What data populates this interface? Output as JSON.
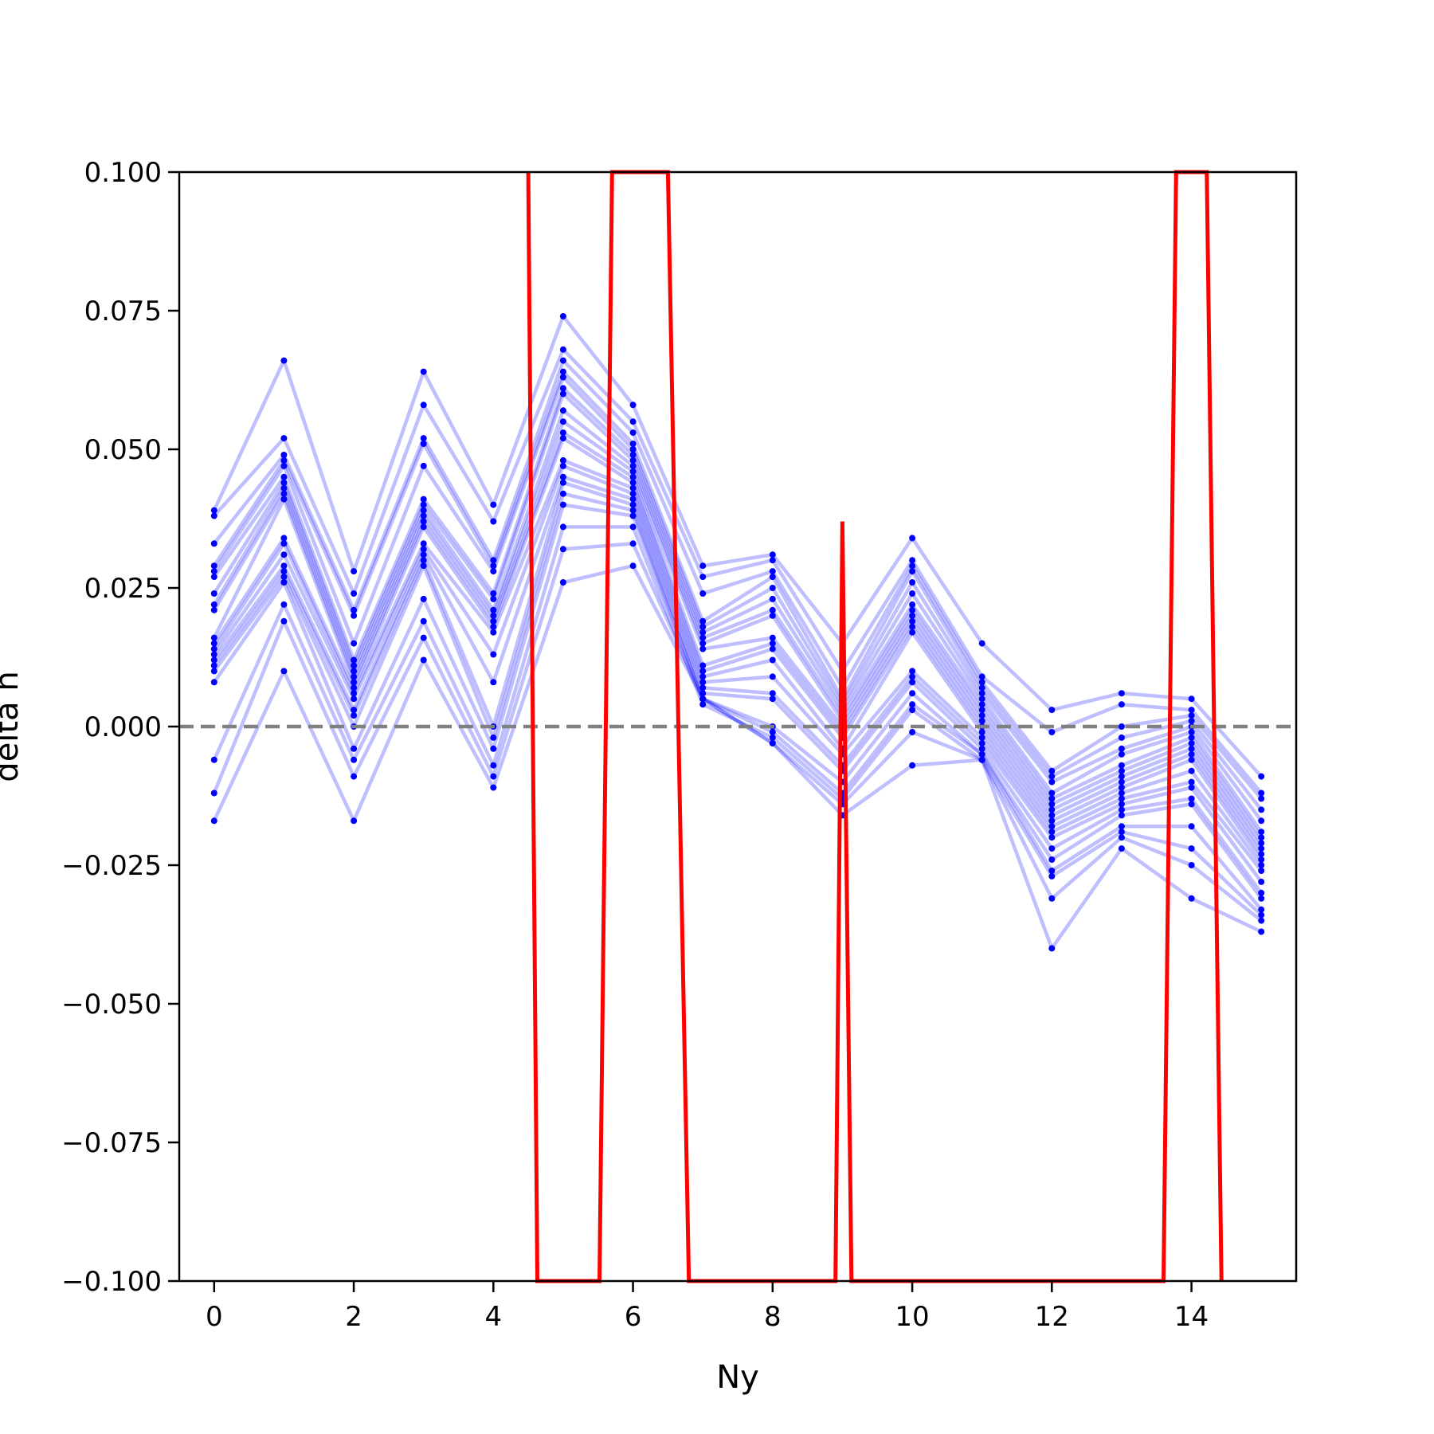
{
  "chart_data": {
    "type": "line",
    "title": "",
    "xlabel": "Ny",
    "ylabel": "delta n",
    "xlim": [
      -0.5,
      15.5
    ],
    "ylim": [
      -0.1,
      0.1
    ],
    "xticks": [
      0,
      2,
      4,
      6,
      8,
      10,
      12,
      14
    ],
    "xtick_labels": [
      "0",
      "2",
      "4",
      "6",
      "8",
      "10",
      "12",
      "14"
    ],
    "yticks": [
      0.1,
      0.075,
      0.05,
      0.025,
      0.0,
      -0.025,
      -0.05,
      -0.075,
      -0.1
    ],
    "ytick_labels": [
      "0.100",
      "0.075",
      "0.050",
      "0.025",
      "0.000",
      "−0.025",
      "−0.050",
      "−0.075",
      "−0.100"
    ],
    "grid": false,
    "legend": "none",
    "reference_line": {
      "y": 0.0,
      "style": "dashed",
      "color": "#808080"
    },
    "x": [
      0,
      1,
      2,
      3,
      4,
      5,
      6,
      7,
      8,
      9,
      10,
      11,
      12,
      13,
      14,
      15
    ],
    "series": [
      {
        "color": "#0000ff",
        "values": [
          0.039,
          0.066,
          0.028,
          0.064,
          0.04,
          0.074,
          0.058,
          0.029,
          0.031,
          0.015,
          0.034,
          0.015,
          0.003,
          0.006,
          0.005,
          -0.009
        ]
      },
      {
        "color": "#0000ff",
        "values": [
          0.038,
          0.052,
          0.024,
          0.058,
          0.037,
          0.068,
          0.055,
          0.027,
          0.03,
          0.01,
          0.03,
          0.009,
          -0.001,
          0.004,
          0.003,
          -0.012
        ]
      },
      {
        "color": "#0000ff",
        "values": [
          0.033,
          0.049,
          0.021,
          0.052,
          0.03,
          0.066,
          0.053,
          0.024,
          0.028,
          0.007,
          0.029,
          0.008,
          -0.008,
          0.0,
          0.002,
          -0.013
        ]
      },
      {
        "color": "#0000ff",
        "values": [
          0.029,
          0.048,
          0.02,
          0.051,
          0.029,
          0.064,
          0.051,
          0.019,
          0.027,
          0.005,
          0.028,
          0.007,
          -0.009,
          -0.002,
          0.001,
          -0.015
        ]
      },
      {
        "color": "#0000ff",
        "values": [
          0.028,
          0.047,
          0.015,
          0.047,
          0.028,
          0.063,
          0.05,
          0.018,
          0.025,
          0.004,
          0.026,
          0.006,
          -0.01,
          -0.004,
          0.0,
          -0.017
        ]
      },
      {
        "color": "#0000ff",
        "values": [
          0.027,
          0.045,
          0.012,
          0.041,
          0.024,
          0.061,
          0.049,
          0.017,
          0.023,
          0.003,
          0.024,
          0.005,
          -0.012,
          -0.005,
          -0.001,
          -0.019
        ]
      },
      {
        "color": "#0000ff",
        "values": [
          0.024,
          0.044,
          0.011,
          0.04,
          0.023,
          0.06,
          0.048,
          0.016,
          0.021,
          0.002,
          0.022,
          0.004,
          -0.013,
          -0.007,
          -0.002,
          -0.02
        ]
      },
      {
        "color": "#0000ff",
        "values": [
          0.022,
          0.043,
          0.01,
          0.039,
          0.021,
          0.057,
          0.047,
          0.015,
          0.02,
          0.001,
          0.021,
          0.003,
          -0.014,
          -0.008,
          -0.003,
          -0.021
        ]
      },
      {
        "color": "#0000ff",
        "values": [
          0.021,
          0.042,
          0.009,
          0.038,
          0.02,
          0.055,
          0.046,
          0.014,
          0.016,
          0.0,
          0.02,
          0.002,
          -0.015,
          -0.009,
          -0.004,
          -0.022
        ]
      },
      {
        "color": "#0000ff",
        "values": [
          0.016,
          0.041,
          0.008,
          0.037,
          0.019,
          0.053,
          0.045,
          0.011,
          0.015,
          -0.001,
          0.019,
          0.001,
          -0.016,
          -0.01,
          -0.005,
          -0.023
        ]
      },
      {
        "color": "#0000ff",
        "values": [
          0.015,
          0.034,
          0.007,
          0.036,
          0.018,
          0.052,
          0.044,
          0.01,
          0.014,
          -0.002,
          0.018,
          0.0,
          -0.017,
          -0.011,
          -0.006,
          -0.024
        ]
      },
      {
        "color": "#0000ff",
        "values": [
          0.014,
          0.033,
          0.006,
          0.033,
          0.017,
          0.048,
          0.043,
          0.009,
          0.012,
          -0.004,
          0.017,
          -0.001,
          -0.018,
          -0.012,
          -0.008,
          -0.025
        ]
      },
      {
        "color": "#0000ff",
        "values": [
          0.013,
          0.031,
          0.005,
          0.032,
          0.013,
          0.047,
          0.042,
          0.008,
          0.009,
          -0.005,
          0.01,
          -0.002,
          -0.019,
          -0.013,
          -0.01,
          -0.026
        ]
      },
      {
        "color": "#0000ff",
        "values": [
          0.012,
          0.029,
          0.003,
          0.031,
          0.008,
          0.045,
          0.041,
          0.007,
          0.006,
          -0.007,
          0.009,
          -0.003,
          -0.02,
          -0.014,
          -0.011,
          -0.028
        ]
      },
      {
        "color": "#0000ff",
        "values": [
          0.011,
          0.028,
          0.002,
          0.03,
          0.0,
          0.044,
          0.04,
          0.006,
          0.005,
          -0.008,
          0.008,
          -0.004,
          -0.022,
          -0.015,
          -0.013,
          -0.03
        ]
      },
      {
        "color": "#0000ff",
        "values": [
          0.01,
          0.027,
          0.0,
          0.029,
          -0.002,
          0.042,
          0.039,
          0.005,
          0.0,
          -0.01,
          0.006,
          -0.005,
          -0.024,
          -0.016,
          -0.014,
          -0.031
        ]
      },
      {
        "color": "#0000ff",
        "values": [
          0.008,
          0.026,
          -0.004,
          0.023,
          -0.004,
          0.04,
          0.038,
          0.005,
          -0.001,
          -0.012,
          0.004,
          -0.005,
          -0.026,
          -0.018,
          -0.018,
          -0.033
        ]
      },
      {
        "color": "#0000ff",
        "values": [
          -0.006,
          0.022,
          -0.006,
          0.019,
          -0.007,
          0.036,
          0.036,
          0.004,
          -0.002,
          -0.013,
          0.003,
          -0.006,
          -0.027,
          -0.019,
          -0.022,
          -0.034
        ]
      },
      {
        "color": "#0000ff",
        "values": [
          -0.012,
          0.019,
          -0.009,
          0.016,
          -0.009,
          0.032,
          0.033,
          0.005,
          -0.003,
          -0.014,
          -0.001,
          -0.006,
          -0.031,
          -0.02,
          -0.025,
          -0.035
        ]
      },
      {
        "color": "#0000ff",
        "values": [
          -0.017,
          0.01,
          -0.017,
          0.012,
          -0.011,
          0.026,
          0.029,
          0.005,
          -0.003,
          -0.016,
          -0.007,
          -0.006,
          -0.04,
          -0.022,
          -0.031,
          -0.037
        ]
      },
      {
        "color": "#ff0000",
        "values": [
          null,
          null,
          null,
          null,
          null,
          null,
          null,
          null,
          null,
          null,
          null,
          null,
          null,
          null,
          null,
          null
        ],
        "polyline": [
          [
            4.5,
            0.1
          ],
          [
            4.63,
            -0.1
          ],
          [
            5.52,
            -0.1
          ],
          [
            5.7,
            0.1
          ],
          [
            6.5,
            0.1
          ],
          [
            6.8,
            -0.1
          ],
          [
            8.9,
            -0.1
          ],
          [
            9.0,
            0.037
          ],
          [
            9.13,
            -0.1
          ],
          [
            13.6,
            -0.1
          ],
          [
            13.78,
            0.1
          ],
          [
            14.22,
            0.1
          ],
          [
            14.43,
            -0.1
          ]
        ]
      }
    ]
  }
}
